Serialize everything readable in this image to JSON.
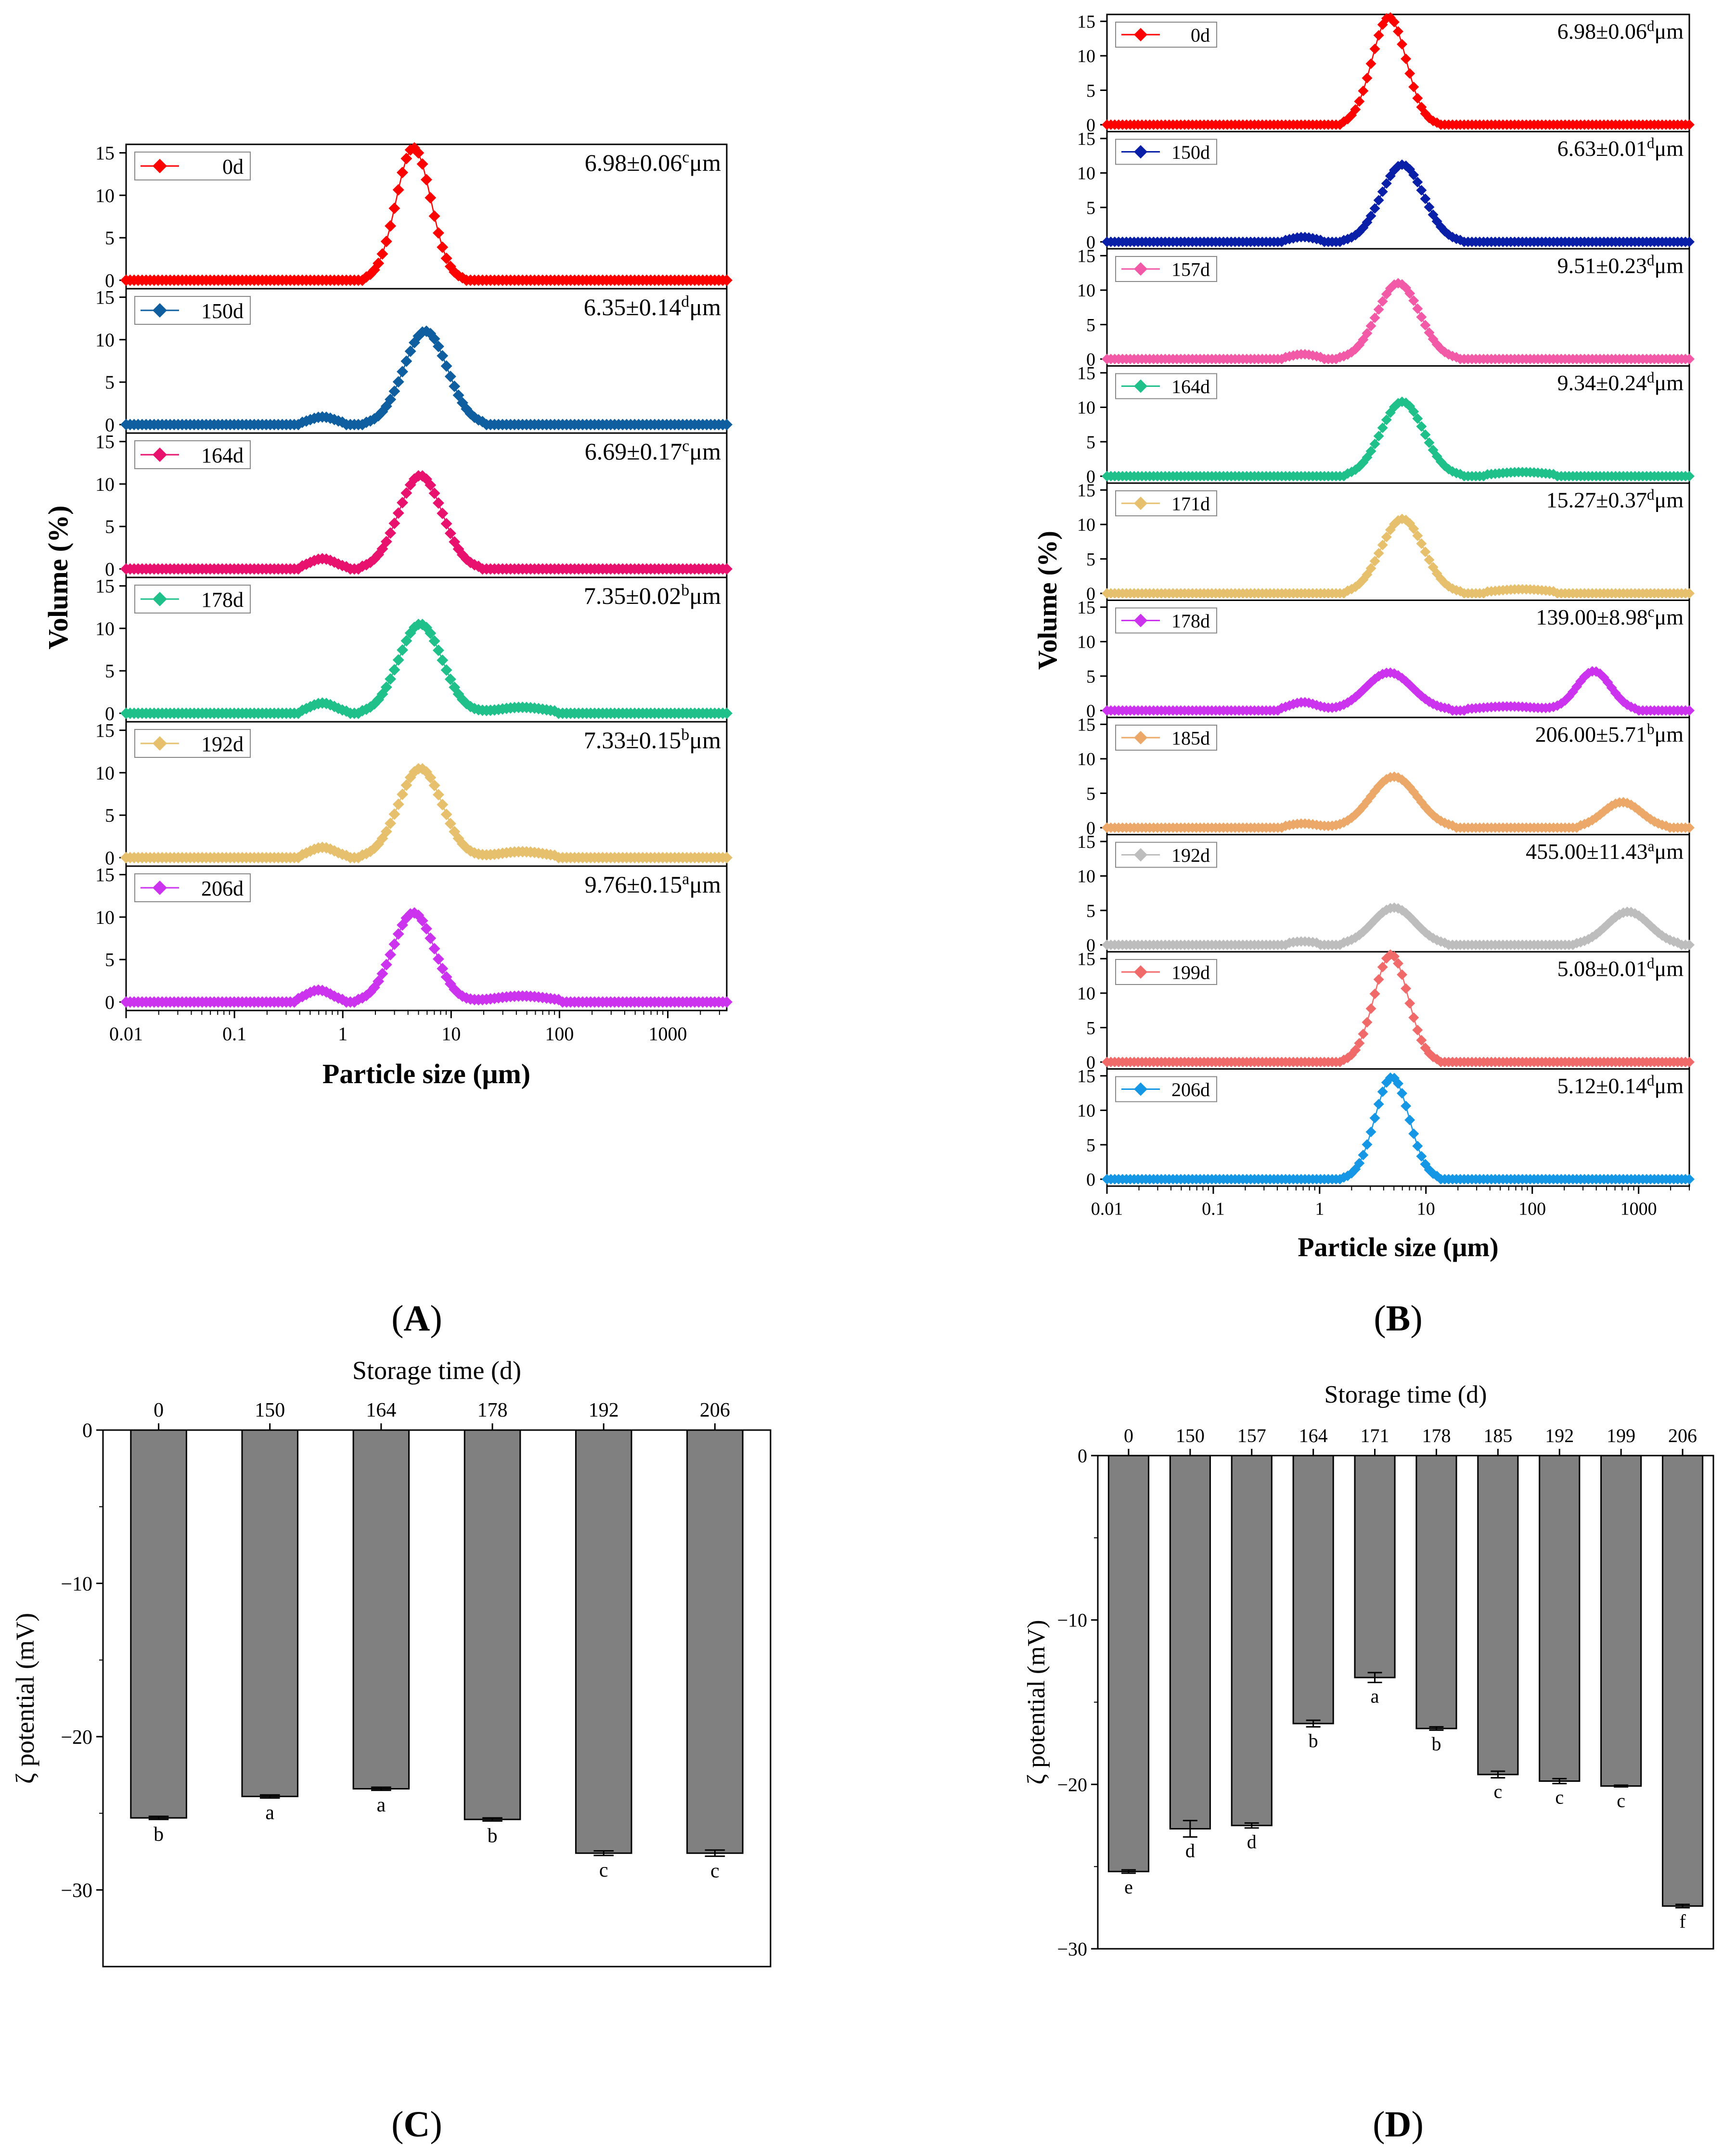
{
  "chart_data": [
    {
      "id": "A",
      "type": "line",
      "panel_label": "A",
      "xlabel": "Particle size (μm)",
      "ylabel": "Volume (%)",
      "xscale": "log",
      "xlim": [
        0.01,
        3500
      ],
      "ylim": [
        -1,
        16
      ],
      "xticks": [
        "0.01",
        "0.1",
        "1",
        "10",
        "100",
        "1000"
      ],
      "yticks": [
        "0",
        "5",
        "10",
        "15"
      ],
      "series": [
        {
          "name": "0d",
          "color": "#ff0000",
          "annotation": "6.98±0.06",
          "sup": "c",
          "unit": "μm",
          "peaks": [
            {
              "center": 4.5,
              "width": 0.16,
              "height": 15.6
            }
          ],
          "cutoff": [
            1.5,
            14
          ],
          "line": true
        },
        {
          "name": "150d",
          "color": "#0f5fa0",
          "annotation": "6.35±0.14",
          "sup": "d",
          "unit": "μm",
          "peaks": [
            {
              "center": 0.65,
              "width": 0.12,
              "height": 0.9
            },
            {
              "center": 5.8,
              "width": 0.2,
              "height": 11
            }
          ],
          "cutoff": [
            0.3,
            25
          ]
        },
        {
          "name": "164d",
          "color": "#e8126e",
          "annotation": "6.69±0.17",
          "sup": "c",
          "unit": "μm",
          "peaks": [
            {
              "center": 0.65,
              "width": 0.12,
              "height": 1.2
            },
            {
              "center": 5.2,
              "width": 0.2,
              "height": 11
            }
          ],
          "cutoff": [
            0.3,
            25
          ]
        },
        {
          "name": "178d",
          "color": "#1fc08a",
          "annotation": "7.35±0.02",
          "sup": "b",
          "unit": "μm",
          "peaks": [
            {
              "center": 0.65,
              "width": 0.12,
              "height": 1.2
            },
            {
              "center": 5.2,
              "width": 0.2,
              "height": 10.5
            },
            {
              "center": 45,
              "width": 0.22,
              "height": 0.7
            }
          ],
          "cutoff": [
            0.3,
            150
          ]
        },
        {
          "name": "192d",
          "color": "#e7c06e",
          "annotation": "7.33±0.15",
          "sup": "b",
          "unit": "μm",
          "peaks": [
            {
              "center": 0.65,
              "width": 0.12,
              "height": 1.2
            },
            {
              "center": 5.2,
              "width": 0.2,
              "height": 10.5
            },
            {
              "center": 45,
              "width": 0.22,
              "height": 0.7
            }
          ],
          "cutoff": [
            0.3,
            150
          ]
        },
        {
          "name": "206d",
          "color": "#cc33ee",
          "annotation": "9.76±0.15",
          "sup": "a",
          "unit": "μm",
          "peaks": [
            {
              "center": 0.6,
              "width": 0.12,
              "height": 1.4
            },
            {
              "center": 4.5,
              "width": 0.19,
              "height": 10.5
            },
            {
              "center": 45,
              "width": 0.25,
              "height": 0.7
            }
          ],
          "cutoff": [
            0.3,
            200
          ]
        }
      ]
    },
    {
      "id": "B",
      "type": "line",
      "panel_label": "B",
      "xlabel": "Particle size (μm)",
      "ylabel": "Volume (%)",
      "xscale": "log",
      "xlim": [
        0.01,
        3000
      ],
      "ylim": [
        -1,
        16
      ],
      "xticks": [
        "0.01",
        "0.1",
        "1",
        "10",
        "100",
        "1000"
      ],
      "yticks": [
        "0",
        "5",
        "10",
        "15"
      ],
      "series": [
        {
          "name": "0d",
          "color": "#ff0000",
          "annotation": "6.98±0.06",
          "sup": "d",
          "unit": "μm",
          "peaks": [
            {
              "center": 4.5,
              "width": 0.16,
              "height": 15.6
            }
          ],
          "cutoff": [
            1.5,
            14
          ]
        },
        {
          "name": "150d",
          "color": "#0a1fa8",
          "annotation": "6.63±0.01",
          "sup": "d",
          "unit": "μm",
          "peaks": [
            {
              "center": 0.7,
              "width": 0.12,
              "height": 0.7
            },
            {
              "center": 6.0,
              "width": 0.2,
              "height": 11.2
            }
          ],
          "cutoff": [
            0.3,
            25
          ]
        },
        {
          "name": "157d",
          "color": "#f25aa8",
          "annotation": "9.51±0.23",
          "sup": "d",
          "unit": "μm",
          "peaks": [
            {
              "center": 0.7,
              "width": 0.12,
              "height": 0.7
            },
            {
              "center": 5.5,
              "width": 0.2,
              "height": 11
            }
          ],
          "cutoff": [
            0.3,
            25
          ]
        },
        {
          "name": "164d",
          "color": "#1fc08a",
          "annotation": "9.34±0.24",
          "sup": "d",
          "unit": "μm",
          "peaks": [
            {
              "center": 6.0,
              "width": 0.2,
              "height": 10.8
            },
            {
              "center": 80,
              "width": 0.25,
              "height": 0.6
            }
          ],
          "cutoff": [
            1.0,
            300
          ]
        },
        {
          "name": "171d",
          "color": "#e7c06e",
          "annotation": "15.27±0.37",
          "sup": "d",
          "unit": "μm",
          "peaks": [
            {
              "center": 6.0,
              "width": 0.2,
              "height": 10.8
            },
            {
              "center": 80,
              "width": 0.25,
              "height": 0.6
            }
          ],
          "cutoff": [
            1.0,
            300
          ]
        },
        {
          "name": "178d",
          "color": "#cc33ee",
          "annotation": "139.00±8.98",
          "sup": "c",
          "unit": "μm",
          "peaks": [
            {
              "center": 0.7,
              "width": 0.13,
              "height": 1.2
            },
            {
              "center": 4.5,
              "width": 0.22,
              "height": 5.5
            },
            {
              "center": 60,
              "width": 0.28,
              "height": 0.6
            },
            {
              "center": 380,
              "width": 0.16,
              "height": 5.7
            }
          ],
          "cutoff": [
            0.3,
            1200
          ]
        },
        {
          "name": "185d",
          "color": "#eba868",
          "annotation": "206.00±5.71",
          "sup": "b",
          "unit": "μm",
          "peaks": [
            {
              "center": 0.7,
              "width": 0.13,
              "height": 0.6
            },
            {
              "center": 5.0,
              "width": 0.22,
              "height": 7.4
            },
            {
              "center": 700,
              "width": 0.18,
              "height": 3.7
            }
          ],
          "cutoff": [
            0.3,
            3000
          ]
        },
        {
          "name": "192d",
          "color": "#bdbdbd",
          "annotation": "455.00±11.43",
          "sup": "a",
          "unit": "μm",
          "peaks": [
            {
              "center": 0.7,
              "width": 0.13,
              "height": 0.5
            },
            {
              "center": 5.0,
              "width": 0.2,
              "height": 5.4
            },
            {
              "center": 800,
              "width": 0.2,
              "height": 4.8
            }
          ],
          "cutoff": [
            0.3,
            3000
          ]
        },
        {
          "name": "199d",
          "color": "#f06a6a",
          "annotation": "5.08±0.01",
          "sup": "d",
          "unit": "μm",
          "peaks": [
            {
              "center": 4.7,
              "width": 0.16,
              "height": 15.6
            }
          ],
          "cutoff": [
            1.5,
            14
          ]
        },
        {
          "name": "206d",
          "color": "#1597e5",
          "annotation": "5.12±0.14",
          "sup": "d",
          "unit": "μm",
          "peaks": [
            {
              "center": 4.8,
              "width": 0.16,
              "height": 14.8
            }
          ],
          "cutoff": [
            1.5,
            14
          ]
        }
      ]
    },
    {
      "id": "C",
      "type": "bar",
      "panel_label": "C",
      "title": "Storage time (d)",
      "ylabel": "ζ potential (mV)",
      "categories": [
        "0",
        "150",
        "164",
        "178",
        "192",
        "206"
      ],
      "values": [
        -25.3,
        -23.9,
        -23.4,
        -25.4,
        -27.6,
        -27.6
      ],
      "errors": [
        0.1,
        0.1,
        0.1,
        0.1,
        0.15,
        0.2
      ],
      "letters": [
        "b",
        "a",
        "a",
        "b",
        "c",
        "c"
      ],
      "ylim": [
        -35,
        0
      ],
      "yticks": [
        "0",
        "−10",
        "−20",
        "−30"
      ],
      "bar_color": "#808080"
    },
    {
      "id": "D",
      "type": "bar",
      "panel_label": "D",
      "title": "Storage time (d)",
      "ylabel": "ζ potential (mV)",
      "categories": [
        "0",
        "150",
        "157",
        "164",
        "171",
        "178",
        "185",
        "192",
        "199",
        "206"
      ],
      "values": [
        -25.3,
        -22.7,
        -22.5,
        -16.3,
        -13.5,
        -16.6,
        -19.4,
        -19.8,
        -20.1,
        -27.4
      ],
      "errors": [
        0.1,
        0.5,
        0.15,
        0.2,
        0.3,
        0.1,
        0.2,
        0.15,
        0.05,
        0.1
      ],
      "letters": [
        "e",
        "d",
        "d",
        "b",
        "a",
        "b",
        "c",
        "c",
        "c",
        "f"
      ],
      "ylim": [
        -30,
        0
      ],
      "yticks": [
        "0",
        "−10",
        "−20",
        "−30"
      ],
      "bar_color": "#808080"
    }
  ]
}
